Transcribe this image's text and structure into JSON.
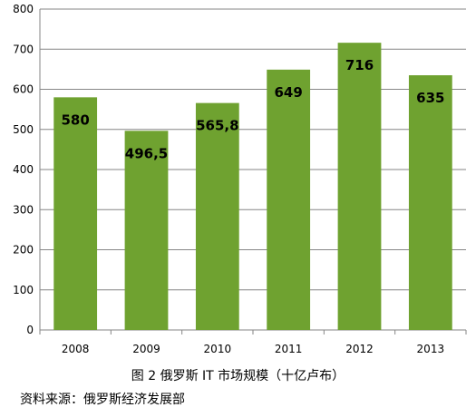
{
  "chart_data": {
    "type": "bar",
    "categories": [
      "2008",
      "2009",
      "2010",
      "2011",
      "2012",
      "2013"
    ],
    "values": [
      580,
      496.5,
      565.8,
      649,
      716,
      635
    ],
    "data_labels": [
      "580",
      "496,5",
      "565,8",
      "649",
      "716",
      "635"
    ],
    "y_ticks": [
      "0",
      "100",
      "200",
      "300",
      "400",
      "500",
      "600",
      "700",
      "800"
    ],
    "ylim": [
      0,
      800
    ],
    "grid": true,
    "bar_color": "#6FA230",
    "title": "",
    "xlabel": "",
    "ylabel": ""
  },
  "caption": "图 2 俄罗斯 IT 市场规模（十亿卢布）",
  "source": "资料来源：俄罗斯经济发展部"
}
